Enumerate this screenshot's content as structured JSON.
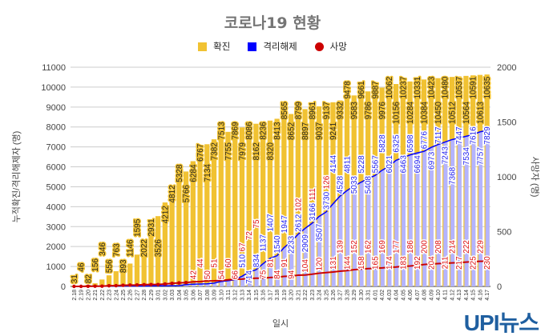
{
  "chart_data": {
    "type": "bar",
    "title": "코로나19 현황",
    "xlabel": "일시",
    "ylabel": "누적확진/격리해제자 (명)",
    "y2label": "사망자 (명)",
    "ylim": [
      0,
      11000
    ],
    "y2lim": [
      0,
      2000
    ],
    "yticks": [
      "0",
      "1000",
      "2000",
      "3000",
      "4000",
      "5000",
      "6000",
      "7000",
      "8000",
      "9000",
      "10000",
      "11000"
    ],
    "y2ticks": [
      "0",
      "500",
      "1000",
      "1500",
      "2000"
    ],
    "grid": true,
    "legend_position": "top",
    "categories": [
      "2.18",
      "2.19",
      "2.20",
      "2.21",
      "2.22",
      "2.23",
      "2.24",
      "2.25",
      "2.26",
      "2.27",
      "2.28",
      "2.29",
      "3.01",
      "3.02",
      "3.03",
      "3.04",
      "3.05",
      "3.06",
      "3.07",
      "3.08",
      "3.09",
      "3.10",
      "3.11",
      "3.12",
      "3.13",
      "3.14",
      "3.15",
      "3.16",
      "3.17",
      "3.18",
      "3.19",
      "3.20",
      "3.21",
      "3.22",
      "3.23",
      "3.24",
      "3.25",
      "3.26",
      "3.27",
      "3.28",
      "3.29",
      "3.30",
      "3.31",
      "4.01",
      "4.02",
      "4.03",
      "4.04",
      "4.05",
      "4.06",
      "4.07",
      "4.08",
      "4.09",
      "4.10",
      "4.11",
      "4.12",
      "4.13",
      "4.14",
      "4.15",
      "4.16",
      "4.17"
    ],
    "series": [
      {
        "name": "확진",
        "type": "bar",
        "axis": "left",
        "color": "#f1c232",
        "values": [
          31,
          46,
          82,
          156,
          346,
          556,
          763,
          893,
          1146,
          1595,
          2022,
          2931,
          3526,
          4212,
          4812,
          5328,
          5766,
          6284,
          6767,
          7134,
          7382,
          7513,
          7755,
          7869,
          7979,
          8086,
          8162,
          8236,
          8320,
          8413,
          8565,
          8652,
          8799,
          8897,
          8961,
          9037,
          9137,
          9241,
          9332,
          9478,
          9583,
          9661,
          9786,
          9887,
          9976,
          10062,
          10156,
          10237,
          10284,
          10331,
          10384,
          10423,
          10450,
          10480,
          10512,
          10537,
          10564,
          10591,
          10613,
          10635
        ]
      },
      {
        "name": "격리해제",
        "type": "bar",
        "axis": "left",
        "color": "#0000ff",
        "values": [
          12,
          12,
          16,
          16,
          16,
          18,
          18,
          22,
          22,
          22,
          22,
          27,
          30,
          30,
          34,
          41,
          88,
          108,
          118,
          130,
          166,
          247,
          288,
          333,
          510,
          714,
          834,
          1137,
          1407,
          1540,
          1947,
          2233,
          2612,
          2909,
          3166,
          3507,
          3730,
          4144,
          4528,
          4811,
          5033,
          5228,
          5408,
          5567,
          5828,
          6021,
          6325,
          6463,
          6598,
          6694,
          6776,
          6973,
          7117,
          7243,
          7368,
          7447,
          7534,
          7616,
          7757,
          7829
        ]
      },
      {
        "name": "사망",
        "type": "line",
        "axis": "right",
        "color": "#cc0000",
        "values": [
          0,
          0,
          1,
          2,
          2,
          6,
          7,
          10,
          12,
          13,
          16,
          17,
          17,
          22,
          28,
          32,
          35,
          42,
          44,
          50,
          51,
          54,
          60,
          66,
          67,
          72,
          75,
          75,
          81,
          84,
          91,
          94,
          102,
          104,
          111,
          120,
          126,
          131,
          139,
          144,
          152,
          158,
          162,
          165,
          169,
          174,
          177,
          183,
          186,
          192,
          200,
          204,
          208,
          211,
          214,
          217,
          222,
          225,
          229,
          230
        ]
      }
    ]
  },
  "logo": "UPI뉴스"
}
